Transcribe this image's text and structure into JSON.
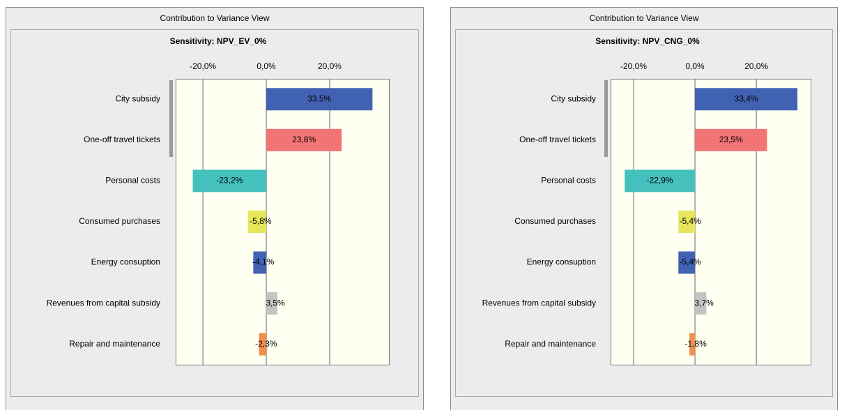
{
  "chart_data": [
    {
      "type": "hbar",
      "window_title": "Contribution to Variance View",
      "title": "Sensitivity: NPV_EV_0%",
      "categories": [
        "City subsidy",
        "One-off travel tickets",
        "Personal costs",
        "Consumed purchases",
        "Energy consuption",
        "Revenues from capital subsidy",
        "Repair and maintenance"
      ],
      "values": [
        33.5,
        23.8,
        -23.2,
        -5.8,
        -4.1,
        3.5,
        -2.3
      ],
      "value_labels": [
        "33,5%",
        "23,8%",
        "-23,2%",
        "-5,8%",
        "-4,1%",
        "3,5%",
        "-2,3%"
      ],
      "colors": [
        "#4161b3",
        "#f27474",
        "#44c0bd",
        "#e6e65c",
        "#4161b3",
        "#c3c3c3",
        "#f0904a"
      ],
      "xlim": [
        -28.6,
        38.7
      ],
      "xticks": [
        {
          "value": -20,
          "label": "-20,0%"
        },
        {
          "value": 0,
          "label": "0,0%"
        },
        {
          "value": 20,
          "label": "20,0%"
        }
      ],
      "grid": true
    },
    {
      "type": "hbar",
      "window_title": "Contribution to Variance View",
      "title": "Sensitivity: NPV_CNG_0%",
      "categories": [
        "City subsidy",
        "One-off travel tickets",
        "Personal costs",
        "Consumed purchases",
        "Energy consuption",
        "Revenues from capital subsidy",
        "Repair and maintenance"
      ],
      "values": [
        33.4,
        23.5,
        -22.9,
        -5.4,
        -5.4,
        3.7,
        -1.8
      ],
      "value_labels": [
        "33,4%",
        "23,5%",
        "-22,9%",
        "-5,4%",
        "-5,4%",
        "3,7%",
        "-1,8%"
      ],
      "colors": [
        "#4161b3",
        "#f27474",
        "#44c0bd",
        "#e6e65c",
        "#4161b3",
        "#c3c3c3",
        "#f0904a"
      ],
      "xlim": [
        -27.5,
        37.7
      ],
      "xticks": [
        {
          "value": -20,
          "label": "-20,0%"
        },
        {
          "value": 0,
          "label": "0,0%"
        },
        {
          "value": 20,
          "label": "20,0%"
        }
      ],
      "grid": true
    }
  ]
}
